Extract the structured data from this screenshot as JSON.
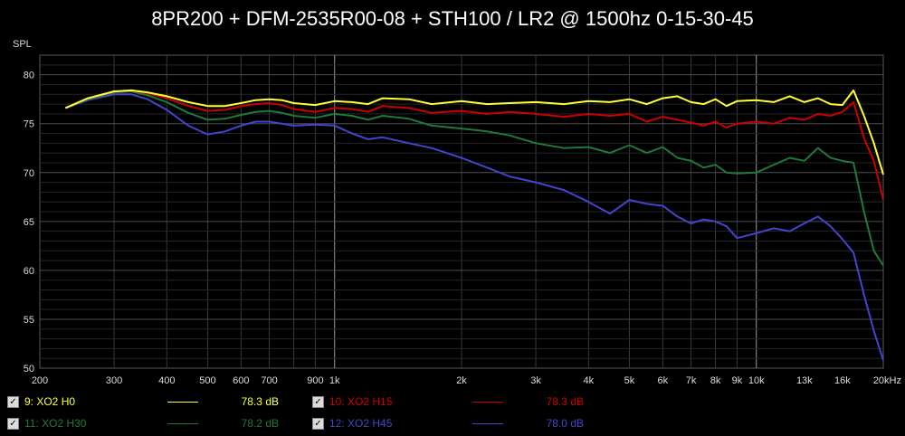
{
  "chart_data": {
    "type": "line",
    "title": "8PR200 + DFM-2535R00-08 + STH100 / LR2 @ 1500hz 0-15-30-45",
    "ylabel": "SPL",
    "xlabel": "",
    "x_scale": "log",
    "xlim": [
      200,
      20000
    ],
    "ylim": [
      50,
      82
    ],
    "grid": true,
    "x_ticks": [
      {
        "value": 200,
        "label": "200"
      },
      {
        "value": 300,
        "label": "300"
      },
      {
        "value": 400,
        "label": "400"
      },
      {
        "value": 500,
        "label": "500"
      },
      {
        "value": 600,
        "label": "600"
      },
      {
        "value": 700,
        "label": "700"
      },
      {
        "value": 900,
        "label": "900"
      },
      {
        "value": 1000,
        "label": "1k"
      },
      {
        "value": 2000,
        "label": "2k"
      },
      {
        "value": 3000,
        "label": "3k"
      },
      {
        "value": 4000,
        "label": "4k"
      },
      {
        "value": 5000,
        "label": "5k"
      },
      {
        "value": 6000,
        "label": "6k"
      },
      {
        "value": 7000,
        "label": "7k"
      },
      {
        "value": 8000,
        "label": "8k"
      },
      {
        "value": 9000,
        "label": "9k"
      },
      {
        "value": 10000,
        "label": "10k"
      },
      {
        "value": 13000,
        "label": "13k"
      },
      {
        "value": 16000,
        "label": "16k"
      },
      {
        "value": 20000,
        "label": "20kHz"
      }
    ],
    "y_ticks": [
      50,
      55,
      60,
      65,
      70,
      75,
      80
    ],
    "x": [
      230,
      260,
      300,
      330,
      360,
      400,
      450,
      500,
      550,
      600,
      650,
      700,
      750,
      800,
      900,
      1000,
      1100,
      1200,
      1300,
      1500,
      1700,
      2000,
      2300,
      2600,
      3000,
      3500,
      4000,
      4500,
      5000,
      5500,
      6000,
      6500,
      7000,
      7500,
      8000,
      8500,
      9000,
      10000,
      11000,
      12000,
      13000,
      14000,
      15000,
      16000,
      17000,
      18000,
      19000,
      20000
    ],
    "series": [
      {
        "name": "9: XO2 H0",
        "color": "#ffff33",
        "legend_db": "78.3 dB",
        "values": [
          76.6,
          77.6,
          78.3,
          78.4,
          78.2,
          77.8,
          77.2,
          76.8,
          76.8,
          77.1,
          77.4,
          77.5,
          77.4,
          77.1,
          76.9,
          77.3,
          77.2,
          77.0,
          77.6,
          77.5,
          77.0,
          77.3,
          77.0,
          77.1,
          77.2,
          77.0,
          77.3,
          77.2,
          77.5,
          77.0,
          77.6,
          77.8,
          77.2,
          77.0,
          77.5,
          76.8,
          77.3,
          77.4,
          77.2,
          77.8,
          77.2,
          77.6,
          77.0,
          76.9,
          78.4,
          75.8,
          73.0,
          69.8
        ]
      },
      {
        "name": "10: XO2 H15",
        "color": "#cc0000",
        "legend_db": "78.3 dB",
        "values": [
          76.6,
          77.6,
          78.3,
          78.4,
          78.1,
          77.6,
          76.8,
          76.3,
          76.4,
          76.8,
          77.0,
          77.1,
          76.9,
          76.5,
          76.2,
          76.6,
          76.5,
          76.2,
          76.8,
          76.6,
          76.1,
          76.3,
          76.0,
          76.2,
          76.0,
          75.7,
          76.0,
          75.8,
          76.0,
          75.2,
          75.7,
          75.4,
          75.1,
          74.8,
          75.2,
          74.6,
          75.0,
          75.2,
          75.0,
          75.6,
          75.4,
          76.0,
          75.8,
          76.2,
          77.2,
          73.5,
          71.2,
          67.2
        ]
      },
      {
        "name": "11: XO2 H30",
        "color": "#1f7a3a",
        "legend_db": "78.2 dB",
        "values": [
          76.6,
          77.5,
          78.2,
          78.3,
          77.9,
          77.2,
          76.1,
          75.4,
          75.5,
          75.9,
          76.2,
          76.3,
          76.1,
          75.8,
          75.6,
          76.0,
          75.8,
          75.4,
          75.8,
          75.5,
          74.8,
          74.5,
          74.2,
          73.8,
          73.0,
          72.5,
          72.6,
          72.0,
          72.8,
          72.0,
          72.6,
          71.5,
          71.2,
          70.5,
          70.8,
          70.0,
          69.9,
          70.0,
          70.8,
          71.5,
          71.2,
          72.5,
          71.5,
          71.2,
          71.0,
          66.0,
          62.0,
          60.5
        ]
      },
      {
        "name": "12: XO2 H45",
        "color": "#4444cc",
        "legend_db": "78.0 dB",
        "values": [
          76.6,
          77.4,
          78.0,
          78.0,
          77.5,
          76.4,
          74.8,
          73.9,
          74.2,
          74.8,
          75.2,
          75.2,
          75.0,
          74.8,
          74.9,
          74.8,
          74.0,
          73.4,
          73.6,
          73.0,
          72.5,
          71.5,
          70.5,
          69.6,
          69.0,
          68.2,
          67.0,
          65.8,
          67.2,
          66.8,
          66.6,
          65.5,
          64.8,
          65.2,
          65.0,
          64.5,
          63.3,
          63.8,
          64.3,
          64.0,
          64.8,
          65.5,
          64.5,
          63.2,
          61.8,
          57.5,
          53.8,
          50.8
        ]
      }
    ]
  }
}
